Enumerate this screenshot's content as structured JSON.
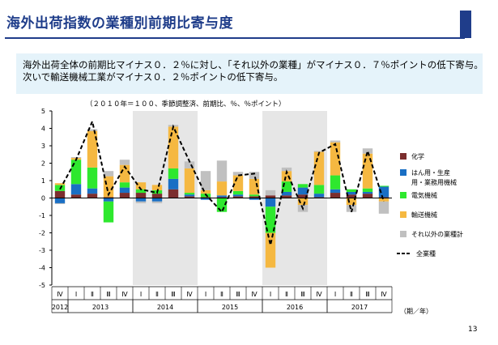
{
  "header": {
    "title": "海外出荷指数の業種別前期比寄与度"
  },
  "summary": {
    "text": "海外出荷全体の前期比マイナス０．２％に対し、「それ以外の業種」がマイナス０．７％ポイントの低下寄与。次いで輸送機械工業がマイナス０．２％ポイントの低下寄与。"
  },
  "chart_note": "（２０１０年＝１００、季節調整済、前期比、％、％ポイント）",
  "page_number": "13",
  "colors": {
    "title": "#1f3d8a",
    "summary_bg": "#e5f3fa",
    "shade": "#e6e6e6",
    "chemical": "#7b2e2e",
    "machinery": "#1a6fc4",
    "electrical": "#2ee82e",
    "transport": "#f5b841",
    "other": "#c0c0c0",
    "total_line": "#000000"
  },
  "chart_data": {
    "type": "bar",
    "stacked": true,
    "ylim": [
      -5,
      5
    ],
    "yticks": [
      5,
      4,
      3,
      2,
      1,
      0,
      -1,
      -2,
      -3,
      -4,
      -5
    ],
    "quarters": [
      "Ⅳ",
      "Ⅰ",
      "Ⅱ",
      "Ⅲ",
      "Ⅳ",
      "Ⅰ",
      "Ⅱ",
      "Ⅲ",
      "Ⅳ",
      "Ⅰ",
      "Ⅱ",
      "Ⅲ",
      "Ⅳ",
      "Ⅰ",
      "Ⅱ",
      "Ⅲ",
      "Ⅳ",
      "Ⅰ",
      "Ⅱ",
      "Ⅲ",
      "Ⅳ"
    ],
    "years": [
      {
        "label": "2012",
        "start": 0,
        "end": 0
      },
      {
        "label": "2013",
        "start": 1,
        "end": 4
      },
      {
        "label": "2014",
        "start": 5,
        "end": 8
      },
      {
        "label": "2015",
        "start": 9,
        "end": 12
      },
      {
        "label": "2016",
        "start": 13,
        "end": 16
      },
      {
        "label": "2017",
        "start": 17,
        "end": 20
      }
    ],
    "shaded_ranges": [
      [
        5,
        8
      ],
      [
        13,
        16
      ]
    ],
    "x_unit_label": "（期／年）",
    "series": [
      {
        "name": "化学",
        "key": "chemical",
        "values": [
          0.4,
          0.2,
          0.25,
          0.05,
          0.3,
          0.3,
          0.25,
          0.5,
          0.1,
          0.05,
          0.05,
          0.1,
          0.1,
          0.15,
          0.15,
          0.2,
          0.05,
          0.3,
          0.2,
          0.25,
          0.05
        ]
      },
      {
        "name": "はん用・生産用・業務用機械",
        "key": "machinery",
        "values": [
          -0.3,
          0.6,
          0.3,
          -0.2,
          0.3,
          -0.2,
          -0.2,
          0.6,
          0.1,
          -0.1,
          0.1,
          0.1,
          -0.1,
          -0.5,
          0.2,
          0.4,
          0.2,
          0.2,
          0.15,
          0.1,
          0.6
        ]
      },
      {
        "name": "電気機械",
        "key": "electrical",
        "values": [
          0.35,
          1.4,
          1.2,
          -1.2,
          0.3,
          0.2,
          0.2,
          0.6,
          0.1,
          0.2,
          -0.8,
          0.2,
          0.1,
          -1.5,
          0.6,
          0.2,
          0.5,
          0.8,
          0.15,
          0.2,
          0.05
        ]
      },
      {
        "name": "輸送機械",
        "key": "transport",
        "values": [
          0.1,
          0.1,
          2.1,
          1.2,
          1.0,
          0.4,
          0.3,
          2.4,
          1.4,
          0.2,
          0.8,
          0.9,
          0.9,
          -2.0,
          0.6,
          -0.4,
          1.9,
          1.9,
          -0.4,
          2.0,
          -0.2
        ]
      },
      {
        "name": "それ以外の業種計",
        "key": "other",
        "values": [
          -0.05,
          0.05,
          0.1,
          0.3,
          0.3,
          -0.1,
          -0.1,
          0.1,
          0.4,
          1.1,
          1.2,
          0.2,
          0.4,
          0.3,
          0.2,
          -0.4,
          0.05,
          0.1,
          -0.4,
          0.3,
          -0.7
        ]
      }
    ],
    "total": {
      "name": "全業種",
      "values": [
        0.5,
        2.2,
        4.4,
        0.2,
        1.8,
        0.5,
        0.3,
        4.1,
        2.1,
        0.2,
        -0.8,
        1.3,
        1.4,
        -2.7,
        1.5,
        -0.6,
        2.6,
        3.1,
        -0.8,
        2.7,
        -0.2
      ]
    }
  }
}
